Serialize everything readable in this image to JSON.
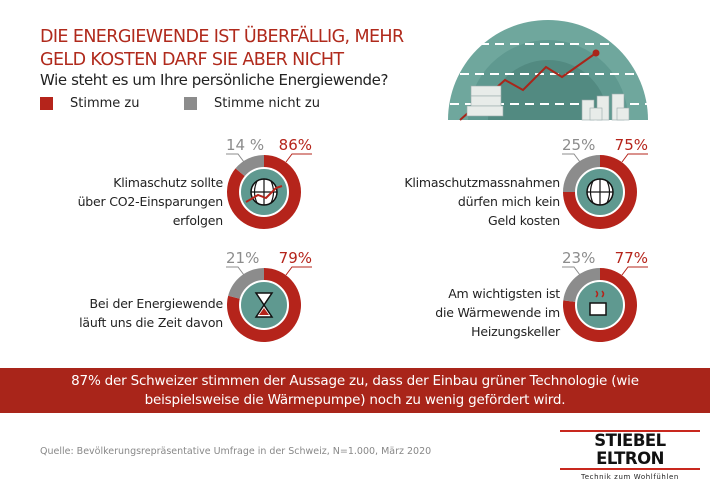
{
  "header": {
    "title_line1": "DIE ENERGIEWENDE IST ÜBERFÄLLIG, MEHR",
    "title_line2": "GELD KOSTEN DARF SIE ABER NICHT",
    "subtitle": "Wie steht es um Ihre persönliche Energiewende?"
  },
  "legend": {
    "agree": "Stimme zu",
    "disagree": "Stimme nicht zu"
  },
  "colors": {
    "agree": "#b5241b",
    "disagree": "#8c8c8c",
    "icon_bg": "#5f9990"
  },
  "chart_data": [
    {
      "type": "pie",
      "question_lines": [
        "Klimaschutz sollte",
        "über CO2-Einsparungen",
        "erfolgen"
      ],
      "agree": 86,
      "disagree": 14,
      "agree_label": "86%",
      "disagree_label": "14 %",
      "icon": "globe-chart-icon"
    },
    {
      "type": "pie",
      "question_lines": [
        "Klimaschutzmassnahmen",
        "dürfen mich kein",
        "Geld kosten"
      ],
      "agree": 75,
      "disagree": 25,
      "agree_label": "75%",
      "disagree_label": "25%",
      "icon": "globe-coins-icon"
    },
    {
      "type": "pie",
      "question_lines": [
        "Bei der Energiewende",
        "läuft uns die Zeit davon"
      ],
      "agree": 79,
      "disagree": 21,
      "agree_label": "79%",
      "disagree_label": "21%",
      "icon": "hourglass-icon"
    },
    {
      "type": "pie",
      "question_lines": [
        "Am wichtigsten ist",
        "die Wärmewende im",
        "Heizungskeller"
      ],
      "agree": 77,
      "disagree": 23,
      "agree_label": "77%",
      "disagree_label": "23%",
      "icon": "heater-icon"
    }
  ],
  "band": {
    "line1": "87% der Schweizer stimmen der Aussage zu, dass der Einbau grüner Technologie (wie",
    "line2": "beispielsweise die Wärmepumpe) noch zu wenig gefördert wird."
  },
  "source": "Quelle: Bevölkerungsrepräsentative Umfrage in der Schweiz, N=1.000, März 2020",
  "logo": {
    "name": "STIEBEL ELTRON",
    "tagline": "Technik zum Wohlfühlen"
  }
}
